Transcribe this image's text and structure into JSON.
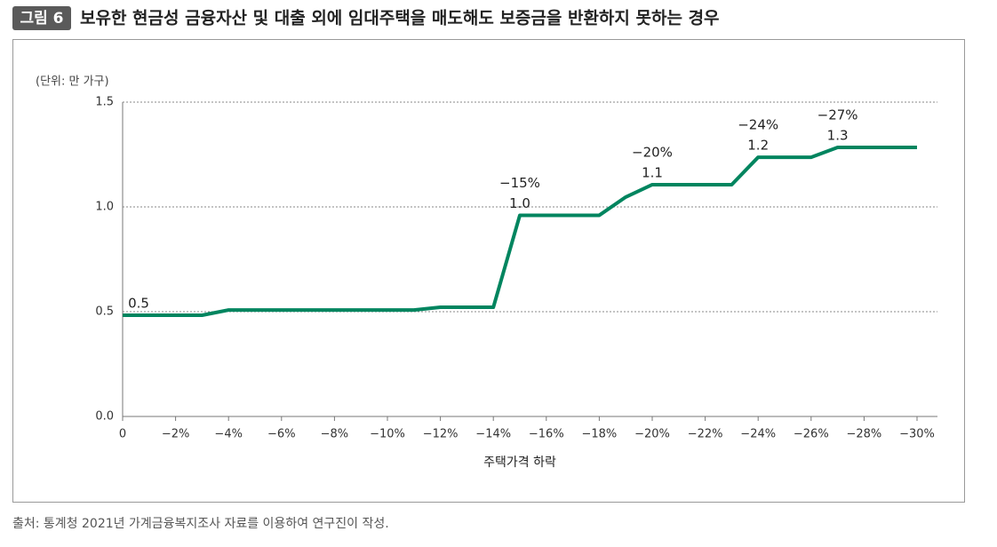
{
  "figure_label": "그림 6",
  "title": "보유한 현금성 금융자산 및 대출 외에 임대주택을 매도해도 보증금을 반환하지 못하는 경우",
  "source": "출처: 통계청 2021년 가계금융복지조사 자료를 이용하여 연구진이 작성.",
  "chart_data": {
    "type": "line",
    "unit_label": "(단위: 만 가구)",
    "x_label": "주택가격 하락",
    "x": [
      0,
      -1,
      -2,
      -3,
      -4,
      -5,
      -6,
      -7,
      -8,
      -9,
      -10,
      -11,
      -12,
      -13,
      -14,
      -15,
      -16,
      -17,
      -18,
      -19,
      -20,
      -21,
      -22,
      -23,
      -24,
      -25,
      -26,
      -27,
      -28,
      -29,
      -30
    ],
    "values": [
      0.483,
      0.483,
      0.483,
      0.483,
      0.508,
      0.508,
      0.508,
      0.508,
      0.508,
      0.508,
      0.508,
      0.508,
      0.521,
      0.521,
      0.521,
      0.96,
      0.96,
      0.96,
      0.96,
      1.047,
      1.106,
      1.106,
      1.106,
      1.106,
      1.237,
      1.237,
      1.237,
      1.284,
      1.284,
      1.284,
      1.284
    ],
    "value_labels": [
      "0.5",
      null,
      null,
      null,
      null,
      null,
      null,
      null,
      null,
      null,
      null,
      null,
      null,
      null,
      null,
      "1.0",
      null,
      null,
      null,
      null,
      "1.1",
      null,
      null,
      null,
      "1.2",
      null,
      null,
      "1.3",
      null,
      null,
      null
    ],
    "annotations": [
      {
        "x": -15,
        "label": "−15%"
      },
      {
        "x": -20,
        "label": "−20%"
      },
      {
        "x": -24,
        "label": "−24%"
      },
      {
        "x": -27,
        "label": "−27%"
      }
    ],
    "color": "#00855f",
    "xlim": [
      0,
      -30
    ],
    "xticks": [
      0,
      {
        "value": -2,
        "label": "−2%"
      },
      {
        "value": -4,
        "label": "−4%"
      },
      {
        "value": -6,
        "label": "−6%"
      },
      {
        "value": -8,
        "label": "−8%"
      },
      {
        "value": -10,
        "label": "−10%"
      },
      {
        "value": -12,
        "label": "−12%"
      },
      {
        "value": -14,
        "label": "−14%"
      },
      {
        "value": -16,
        "label": "−16%"
      },
      {
        "value": -18,
        "label": "−18%"
      },
      {
        "value": -20,
        "label": "−20%"
      },
      {
        "value": -22,
        "label": "−22%"
      },
      {
        "value": -24,
        "label": "−24%"
      },
      {
        "value": -26,
        "label": "−26%"
      },
      {
        "value": -28,
        "label": "−28%"
      },
      {
        "value": -30,
        "label": "−30%"
      }
    ],
    "ylim": [
      0,
      1.5
    ],
    "yticks": [
      {
        "value": 0,
        "label": "0.0"
      },
      0.5,
      {
        "value": 1,
        "label": "1.0"
      },
      1.5
    ],
    "grid": true
  }
}
